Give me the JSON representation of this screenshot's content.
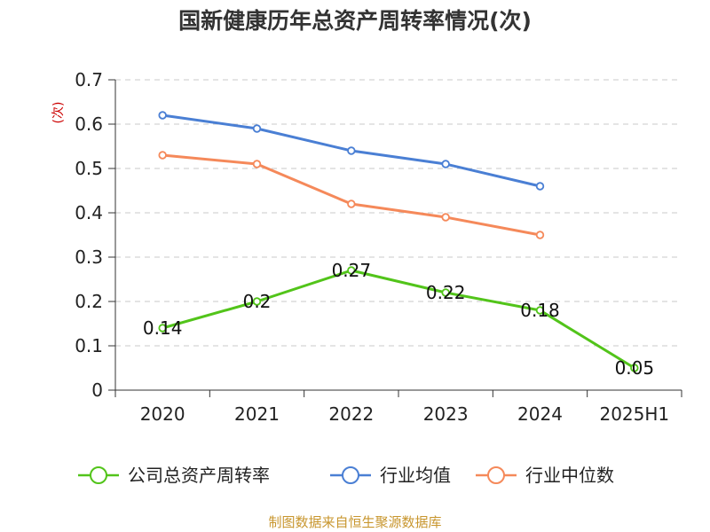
{
  "chart_data": {
    "type": "line",
    "title": "国新健康历年总资产周转率情况(次)",
    "ylabel": "(次)",
    "xlabel": "",
    "categories": [
      "2020",
      "2021",
      "2022",
      "2023",
      "2024",
      "2025H1"
    ],
    "ylim": [
      0,
      0.7
    ],
    "yticks": [
      "0",
      "0.1",
      "0.2",
      "0.3",
      "0.4",
      "0.5",
      "0.6",
      "0.7"
    ],
    "grid": true,
    "legend_position": "bottom",
    "series": [
      {
        "name": "公司总资产周转率",
        "color": "#52c41a",
        "values": [
          0.14,
          0.2,
          0.27,
          0.22,
          0.18,
          0.05
        ],
        "labels": [
          "0.14",
          "0.2",
          "0.27",
          "0.22",
          "0.18",
          "0.05"
        ]
      },
      {
        "name": "行业均值",
        "color": "#4a7fd4",
        "values": [
          0.62,
          0.59,
          0.54,
          0.51,
          0.46,
          null
        ]
      },
      {
        "name": "行业中位数",
        "color": "#f5895a",
        "values": [
          0.53,
          0.51,
          0.42,
          0.39,
          0.35,
          null
        ]
      }
    ]
  },
  "source": "制图数据来自恒生聚源数据库"
}
